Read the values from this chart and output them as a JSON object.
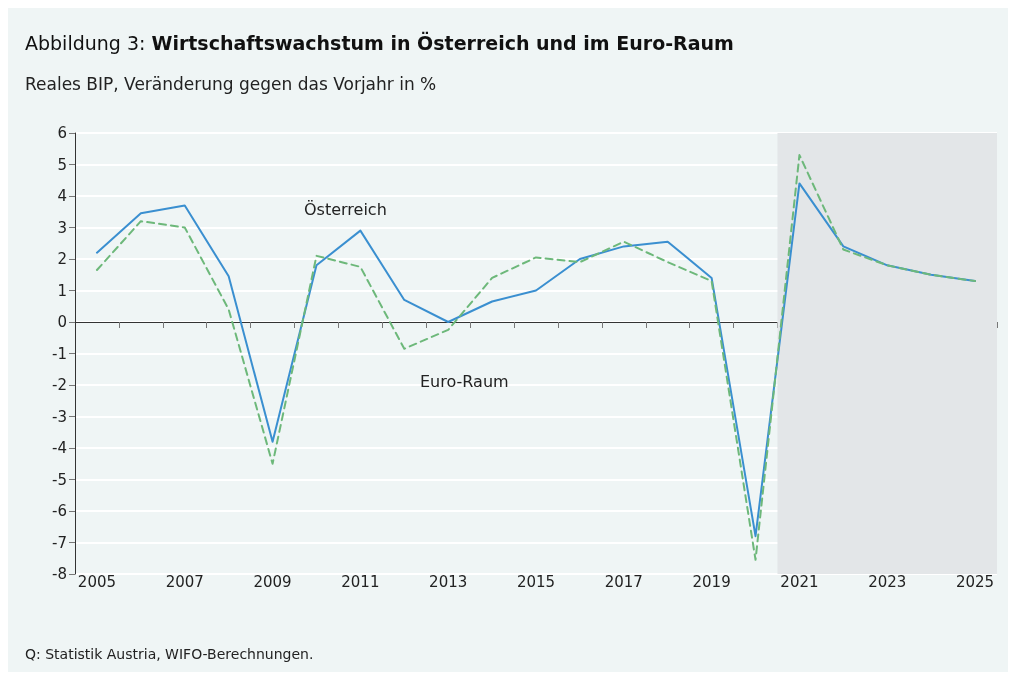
{
  "chart_data": {
    "type": "line",
    "title": "Abbildung 3: Wirtschaftswachstum in Österreich und im Euro-Raum",
    "subtitle": "Reales BIP, Veränderung gegen das Vorjahr in %",
    "annotations": [
      "Q: Statistik Austria, WIFO-Berechnungen."
    ],
    "x": [
      2005,
      2006,
      2007,
      2008,
      2009,
      2010,
      2011,
      2012,
      2013,
      2014,
      2015,
      2016,
      2017,
      2018,
      2019,
      2020,
      2021,
      2022,
      2023,
      2024,
      2025
    ],
    "xlim": [
      2004.5,
      2025.5
    ],
    "xticks": [
      2005,
      2007,
      2009,
      2011,
      2013,
      2015,
      2017,
      2019,
      2021,
      2023,
      2025,
      {
        "value": 2005.5,
        "label": null
      },
      {
        "value": 2006.5,
        "label": null
      },
      {
        "value": 2007.5,
        "label": null
      },
      {
        "value": 2008.5,
        "label": null
      },
      {
        "value": 2009.5,
        "label": null
      },
      {
        "value": 2010.5,
        "label": null
      },
      {
        "value": 2011.5,
        "label": null
      },
      {
        "value": 2012.5,
        "label": null
      },
      {
        "value": 2013.5,
        "label": null
      },
      {
        "value": 2014.5,
        "label": null
      },
      {
        "value": 2015.5,
        "label": null
      },
      {
        "value": 2016.5,
        "label": null
      },
      {
        "value": 2017.5,
        "label": null
      },
      {
        "value": 2018.5,
        "label": null
      },
      {
        "value": 2019.5,
        "label": null
      },
      {
        "value": 2020.5,
        "label": null
      },
      {
        "value": 2021.5,
        "label": null
      },
      {
        "value": 2022.5,
        "label": null
      },
      {
        "value": 2023.5,
        "label": null
      },
      {
        "value": 2024.5,
        "label": null
      },
      {
        "value": 2025.5,
        "label": null
      }
    ],
    "ylim": [
      -8,
      6
    ],
    "yticks": [
      -8,
      -7,
      -6,
      -5,
      -4,
      -3,
      -2,
      -1,
      0,
      1,
      2,
      3,
      4,
      5,
      6
    ],
    "grid": "y",
    "marker": "none",
    "legend": false,
    "bands": [
      {
        "axis": "x",
        "from": 2020.5,
        "to": 2025.5,
        "color": "#e3e6e8"
      }
    ],
    "series": [
      {
        "name": "Österreich",
        "color": "#3a8fd0",
        "line_style": "solid",
        "values": [
          2.2,
          3.45,
          3.7,
          1.45,
          -3.8,
          1.8,
          2.9,
          0.7,
          0.0,
          0.65,
          1.0,
          2.0,
          2.4,
          2.55,
          1.4,
          -6.8,
          4.4,
          2.4,
          1.8,
          1.5,
          1.3
        ]
      },
      {
        "name": "Euro-Raum",
        "color": "#6db87a",
        "line_style": "dashed",
        "values": [
          1.65,
          3.2,
          3.0,
          0.4,
          -4.5,
          2.1,
          1.75,
          -0.85,
          -0.25,
          1.4,
          2.05,
          1.9,
          2.55,
          1.9,
          1.3,
          -7.55,
          5.3,
          2.3,
          1.8,
          1.5,
          1.3
        ]
      }
    ]
  }
}
